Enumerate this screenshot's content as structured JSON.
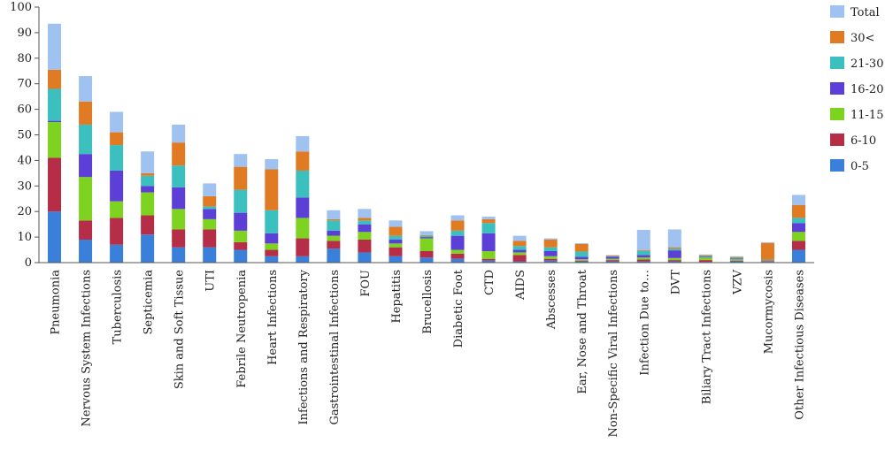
{
  "chart_data": {
    "type": "bar",
    "stacked": true,
    "title": "",
    "xlabel": "",
    "ylabel": "",
    "ylim": [
      0,
      100
    ],
    "yticks": [
      0,
      10,
      20,
      30,
      40,
      50,
      60,
      70,
      80,
      90,
      100
    ],
    "grid": false,
    "legend_position": "right",
    "categories": [
      "Pneumonia",
      "Nervous System Infections",
      "Tuberculosis",
      "Septicemia",
      "Skin and Soft Tissue",
      "UTI",
      "Febrile Neutropenia",
      "Heart Infections",
      "Infections and Respiratory",
      "Gastrointestinal Infections",
      "FOU",
      "Hepatitis",
      "Brucellosis",
      "Diabetic Foot",
      "CTD",
      "AIDS",
      "Abscesses",
      "Ear, Nose and Throat",
      "Non-Specific Viral Infections",
      "Infection Due to…",
      "DVT",
      "Biliary Tract Infections",
      "VZV",
      "Mucormycosis",
      "Other Infectious Diseases"
    ],
    "series": [
      {
        "name": "0-5",
        "color": "#3a7fd9",
        "values": [
          20,
          9,
          7,
          11,
          6,
          6,
          5,
          2.5,
          2.5,
          5.5,
          4,
          2.5,
          2,
          1.5,
          0.8,
          0.5,
          0.8,
          0.5,
          0.5,
          0.5,
          0.5,
          0.3,
          0.5,
          0.3,
          5
        ]
      },
      {
        "name": "6-10",
        "color": "#b52d46",
        "values": [
          21,
          7.5,
          10.5,
          7.5,
          7,
          7,
          3,
          2.5,
          7,
          3,
          5,
          3.5,
          2.5,
          2,
          0.7,
          2.5,
          0.7,
          0.3,
          0.5,
          0.7,
          0.5,
          0.7,
          0.3,
          0.3,
          3.5
        ]
      },
      {
        "name": "11-15",
        "color": "#7ed321",
        "values": [
          14,
          17,
          6.5,
          9,
          8,
          4,
          4.5,
          2.5,
          8,
          2,
          3,
          1.5,
          5,
          1.5,
          3,
          1,
          1,
          0.5,
          0.5,
          0.8,
          0.8,
          1,
          0.5,
          0.2,
          3.5
        ]
      },
      {
        "name": "16-20",
        "color": "#5b3fd6",
        "values": [
          0.5,
          9,
          12,
          2.5,
          8.5,
          4,
          7,
          4,
          8,
          2,
          3,
          1.5,
          0.5,
          5.5,
          7,
          1,
          2,
          1,
          0.8,
          1,
          3,
          0.3,
          0.3,
          0.2,
          3.5
        ]
      },
      {
        "name": "21-30",
        "color": "#3bbfbf",
        "values": [
          12.5,
          11.5,
          10,
          4,
          8.5,
          1,
          9,
          9,
          10.5,
          4,
          1.5,
          1.5,
          0.5,
          2,
          4,
          1.5,
          1.5,
          2,
          0.2,
          1.5,
          0.7,
          0.3,
          0.3,
          0.2,
          2
        ]
      },
      {
        "name": "30<",
        "color": "#e07b24",
        "values": [
          7.5,
          9,
          5,
          1,
          9,
          4,
          9,
          16,
          7.5,
          0.5,
          1,
          3.5,
          0.3,
          4,
          1.5,
          2,
          3,
          3,
          0.3,
          0.3,
          0.5,
          0.3,
          0.3,
          6.5,
          5
        ]
      },
      {
        "name": "Total",
        "color": "#9fc2f0",
        "values": [
          18,
          10,
          8,
          8.5,
          7,
          5,
          5,
          4,
          6,
          3.5,
          3.5,
          2.5,
          1.5,
          2,
          1,
          2,
          0.5,
          0.3,
          0.2,
          8,
          7,
          0.3,
          0.3,
          0.3,
          4
        ]
      }
    ],
    "legend_order": [
      "Total",
      "30<",
      "21-30",
      "16-20",
      "11-15",
      "6-10",
      "0-5"
    ]
  }
}
